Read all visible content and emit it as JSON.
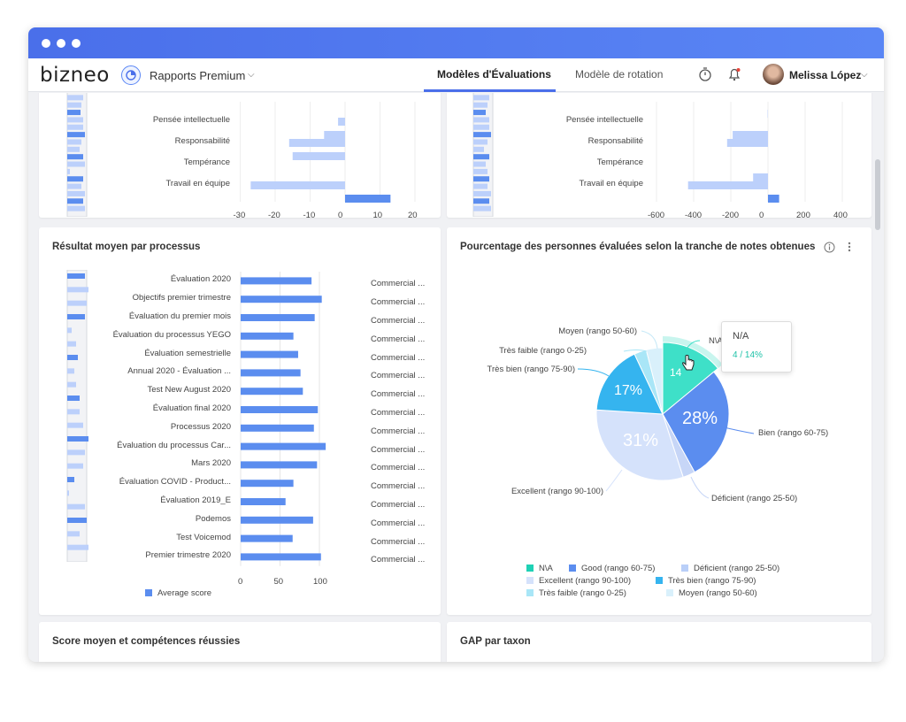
{
  "app": {
    "logo": "bizneo",
    "report_title": "Rapports Premium",
    "tabs": [
      {
        "label": "Modèles d'Évaluations",
        "active": true
      },
      {
        "label": "Modèle de rotation",
        "active": false
      }
    ],
    "user_name": "Melissa López"
  },
  "colors": {
    "accent": "#4a6fea",
    "bar_dark": "#5b8def",
    "bar_light": "#bcd0fb",
    "mint": "#3ee0c8",
    "light_blue_slice": "#c9d9fb",
    "cyan": "#35b4ef"
  },
  "top_left_chart": {
    "rows": [
      {
        "label": "Pensée intellectuelle",
        "value": -2
      },
      {
        "label": "Responsabilité",
        "value": -16
      },
      {
        "label": "Tempérance",
        "value": 0
      },
      {
        "label": "Travail en équipe",
        "value": -27
      }
    ],
    "extra_bars": [
      -6,
      -15,
      13
    ],
    "ticks": [
      "-30",
      "-20",
      "-10",
      "0",
      "10",
      "20"
    ]
  },
  "top_right_chart": {
    "rows": [
      {
        "label": "Pensée intellectuelle",
        "value": 0
      },
      {
        "label": "Responsabilité",
        "value": -220
      },
      {
        "label": "Tempérance",
        "value": 0
      },
      {
        "label": "Travail en équipe",
        "value": -430
      }
    ],
    "ticks": [
      "-600",
      "-400",
      "-200",
      "0",
      "200",
      "400"
    ]
  },
  "process_chart": {
    "title": "Résultat moyen par processus",
    "legend": "Average score",
    "ticks": [
      "0",
      "50",
      "100"
    ],
    "rows": [
      {
        "label": "Évaluation 2020",
        "value": 90,
        "category": "Commercial ..."
      },
      {
        "label": "Objectifs premier trimestre",
        "value": 103,
        "category": "Commercial ..."
      },
      {
        "label": "Évaluation du premier mois",
        "value": 94,
        "category": "Commercial ..."
      },
      {
        "label": "Évaluation du processus YEGO",
        "value": 67,
        "category": "Commercial ..."
      },
      {
        "label": "Évaluation semestrielle",
        "value": 73,
        "category": "Commercial ..."
      },
      {
        "label": "Annual 2020 - Évaluation ...",
        "value": 76,
        "category": "Commercial ..."
      },
      {
        "label": "Test New August 2020",
        "value": 79,
        "category": "Commercial ..."
      },
      {
        "label": "Évaluation final 2020",
        "value": 98,
        "category": "Commercial ..."
      },
      {
        "label": "Processus 2020",
        "value": 93,
        "category": "Commercial ..."
      },
      {
        "label": "Évaluation du processus Car...",
        "value": 108,
        "category": "Commercial ..."
      },
      {
        "label": "Mars 2020",
        "value": 97,
        "category": "Commercial ..."
      },
      {
        "label": "Évaluation COVID - Product...",
        "value": 67,
        "category": "Commercial ..."
      },
      {
        "label": "Évaluation 2019_E",
        "value": 57,
        "category": "Commercial ..."
      },
      {
        "label": "Podemos",
        "value": 92,
        "category": "Commercial ..."
      },
      {
        "label": "Test Voicemod",
        "value": 66,
        "category": "Commercial ..."
      },
      {
        "label": "Premier trimestre 2020",
        "value": 102,
        "category": "Commercial ..."
      }
    ]
  },
  "pie_chart": {
    "title": "Pourcentage des personnes évaluées selon la tranche de notes obtenues",
    "slices": [
      {
        "label": "N\\A",
        "value": 14,
        "color": "#3ee0c8"
      },
      {
        "label": "Bien (rango 60-75)",
        "value": 28,
        "color": "#5b8def"
      },
      {
        "label": "Déficient (rango 25-50)",
        "value": 3,
        "color": "#c7d6f7"
      },
      {
        "label": "Excellent (rango 90-100)",
        "value": 31,
        "color": "#d5e2fb"
      },
      {
        "label": "Très bien (rango 75-90)",
        "value": 17,
        "color": "#35b4ef"
      },
      {
        "label": "Très faible (rango 0-25)",
        "value": 3,
        "color": "#a9e6f7"
      },
      {
        "label": "Moyen (rango 50-60)",
        "value": 4,
        "color": "#d9f0fb"
      }
    ],
    "slice_labels": {
      "bien": "28%",
      "excellent": "31%",
      "tres_bien": "17%",
      "na_partial": "14"
    },
    "outer_labels": {
      "moyen": "Moyen (rango 50-60)",
      "tres_faible": "Très faible (rango 0-25)",
      "tres_bien": "Très bien (rango 75-90)",
      "na": "N\\A",
      "bien": "Bien (rango 60-75)",
      "excellent": "Excellent (rango 90-100)",
      "deficient": "Déficient (rango 25-50)"
    },
    "tooltip": {
      "title": "N/A",
      "value": "4 / 14%"
    },
    "legend": [
      {
        "label": "N\\A",
        "color": "#1fd1b5"
      },
      {
        "label": "Good (rango 60-75)",
        "color": "#5b8def"
      },
      {
        "label": "Déficient (rango 25-50)",
        "color": "#b9cff8"
      },
      {
        "label": "Excellent (rango 90-100)",
        "color": "#d5e2fb"
      },
      {
        "label": "Très bien (rango 75-90)",
        "color": "#35b4ef"
      },
      {
        "label": "Très faible (rango 0-25)",
        "color": "#a9e6f7"
      },
      {
        "label": "Moyen (rango 50-60)",
        "color": "#d9f0fb"
      }
    ]
  },
  "bottom_cards": {
    "left_title": "Score moyen et compétences réussies",
    "right_title": "GAP par taxon"
  }
}
